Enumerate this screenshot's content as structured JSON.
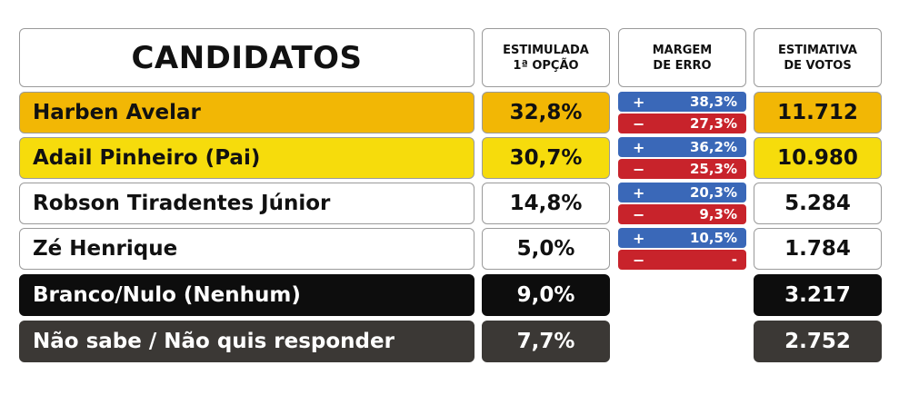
{
  "header": {
    "candidates": "CANDIDATOS",
    "stimulated_line1": "ESTIMULADA",
    "stimulated_line2": "1ª OPÇÃO",
    "margin_line1": "MARGEM",
    "margin_line2": "DE ERRO",
    "estimate_line1": "ESTIMATIVA",
    "estimate_line2": "DE VOTOS"
  },
  "rows": [
    {
      "name": "Harben Avelar",
      "pct": "32,8%",
      "plus": "38,3%",
      "minus": "27,3%",
      "votes": "11.712",
      "color": "#f2b705"
    },
    {
      "name": "Adail Pinheiro (Pai)",
      "pct": "30,7%",
      "plus": "36,2%",
      "minus": "25,3%",
      "votes": "10.980",
      "color": "#f6dc0c"
    },
    {
      "name": "Robson Tiradentes Júnior",
      "pct": "14,8%",
      "plus": "20,3%",
      "minus": "9,3%",
      "votes": "5.284",
      "color": "#ffffff"
    },
    {
      "name": "Zé Henrique",
      "pct": "5,0%",
      "plus": "10,5%",
      "minus": "-",
      "votes": "1.784",
      "color": "#ffffff"
    },
    {
      "name": "Branco/Nulo (Nenhum)",
      "pct": "9,0%",
      "votes": "3.217",
      "color": "#0d0d0d"
    },
    {
      "name": "Não sabe / Não quis responder",
      "pct": "7,7%",
      "votes": "2.752",
      "color": "#3b3835"
    }
  ],
  "signs": {
    "plus": "+",
    "minus": "−"
  },
  "colors": {
    "plus_bg": "#3a68b8",
    "minus_bg": "#c8232b"
  }
}
